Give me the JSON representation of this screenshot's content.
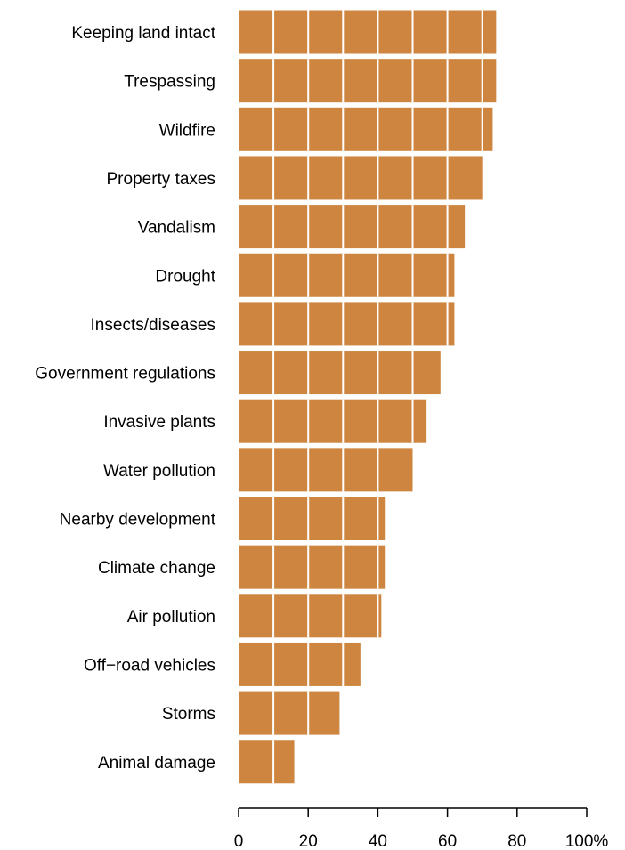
{
  "chart_data": {
    "type": "bar",
    "orientation": "horizontal",
    "categories": [
      "Keeping land intact",
      "Trespassing",
      "Wildfire",
      "Property taxes",
      "Vandalism",
      "Drought",
      "Insects/diseases",
      "Government regulations",
      "Invasive plants",
      "Water pollution",
      "Nearby development",
      "Climate change",
      "Air pollution",
      "Off−road vehicles",
      "Storms",
      "Animal damage"
    ],
    "values": [
      74,
      74,
      73,
      70,
      65,
      62,
      62,
      58,
      54,
      50,
      42,
      42,
      41,
      35,
      29,
      16
    ],
    "xlim": [
      0,
      100
    ],
    "xticks": [
      0,
      20,
      40,
      60,
      80,
      100
    ],
    "xtick_labels": [
      "0",
      "20",
      "40",
      "60",
      "80",
      "100%"
    ],
    "bar_gridlines_every": 10,
    "grid": false,
    "legend": "none",
    "colors": {
      "bar": "#cd853f",
      "gridline": "#ffffff",
      "axis": "#000000"
    }
  }
}
